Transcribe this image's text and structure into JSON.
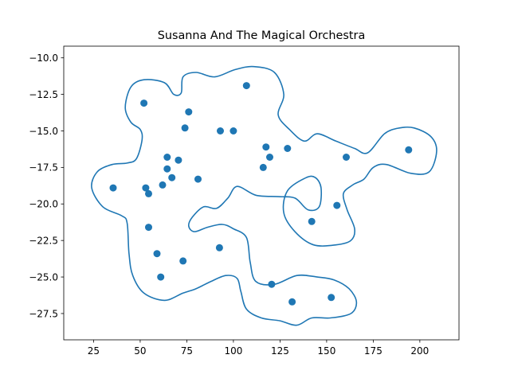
{
  "chart_data": {
    "type": "scatter",
    "title": "Susanna And The Magical Orchestra",
    "xlabel": "",
    "ylabel": "",
    "xlim": [
      9,
      221
    ],
    "ylim": [
      -29.3,
      -9.2
    ],
    "xticks": [
      25,
      50,
      75,
      100,
      125,
      150,
      175,
      200
    ],
    "xtick_labels": [
      "25",
      "50",
      "75",
      "100",
      "125",
      "150",
      "175",
      "200"
    ],
    "yticks": [
      -10.0,
      -12.5,
      -15.0,
      -17.5,
      -20.0,
      -22.5,
      -25.0,
      -27.5
    ],
    "ytick_labels": [
      "−10.0",
      "−12.5",
      "−15.0",
      "−17.5",
      "−20.0",
      "−22.5",
      "−25.0",
      "−27.5"
    ],
    "grid": false,
    "marker_color": "#1f77b4",
    "contour_color": "#1f77b4",
    "points": [
      {
        "x": 107,
        "y": -11.9
      },
      {
        "x": 52,
        "y": -13.1
      },
      {
        "x": 76,
        "y": -13.7
      },
      {
        "x": 74,
        "y": -14.8
      },
      {
        "x": 93,
        "y": -15.0
      },
      {
        "x": 100,
        "y": -15.0
      },
      {
        "x": 117.5,
        "y": -16.1
      },
      {
        "x": 129,
        "y": -16.2
      },
      {
        "x": 194,
        "y": -16.3
      },
      {
        "x": 119.5,
        "y": -16.8
      },
      {
        "x": 160.5,
        "y": -16.8
      },
      {
        "x": 64.5,
        "y": -16.8
      },
      {
        "x": 70.5,
        "y": -17.0
      },
      {
        "x": 116,
        "y": -17.5
      },
      {
        "x": 64.5,
        "y": -17.6
      },
      {
        "x": 67,
        "y": -18.2
      },
      {
        "x": 81,
        "y": -18.3
      },
      {
        "x": 62,
        "y": -18.7
      },
      {
        "x": 35.5,
        "y": -18.9
      },
      {
        "x": 53,
        "y": -18.9
      },
      {
        "x": 54.5,
        "y": -19.3
      },
      {
        "x": 155.5,
        "y": -20.1
      },
      {
        "x": 142,
        "y": -21.2
      },
      {
        "x": 54.5,
        "y": -21.6
      },
      {
        "x": 92.5,
        "y": -23.0
      },
      {
        "x": 59,
        "y": -23.4
      },
      {
        "x": 73,
        "y": -23.9
      },
      {
        "x": 61,
        "y": -25.0
      },
      {
        "x": 120.5,
        "y": -25.5
      },
      {
        "x": 152.5,
        "y": -26.4
      },
      {
        "x": 131.5,
        "y": -26.7
      }
    ],
    "contours": [
      [
        [
          52,
          -11.5
        ],
        [
          63,
          -11.7
        ],
        [
          68,
          -12.5
        ],
        [
          72,
          -12.4
        ],
        [
          73,
          -11.3
        ],
        [
          80,
          -11
        ],
        [
          90,
          -11.3
        ],
        [
          101,
          -10.8
        ],
        [
          111,
          -10.6
        ],
        [
          122,
          -11
        ],
        [
          127,
          -12.5
        ],
        [
          124,
          -13.9
        ],
        [
          130,
          -14.9
        ],
        [
          138,
          -15.7
        ],
        [
          145,
          -15.2
        ],
        [
          155,
          -15.7
        ],
        [
          165,
          -16.2
        ],
        [
          172,
          -16.5
        ],
        [
          181,
          -15.2
        ],
        [
          189,
          -14.8
        ],
        [
          197,
          -14.8
        ],
        [
          206,
          -15.4
        ],
        [
          209,
          -16.4
        ],
        [
          205,
          -17.8
        ],
        [
          195,
          -17.9
        ],
        [
          182,
          -17.3
        ],
        [
          175,
          -17.5
        ],
        [
          170,
          -18.3
        ],
        [
          164,
          -18.7
        ],
        [
          159,
          -19.3
        ],
        [
          161,
          -20.4
        ],
        [
          165,
          -21.7
        ],
        [
          163,
          -22.5
        ],
        [
          155,
          -22.8
        ],
        [
          143,
          -22.8
        ],
        [
          133,
          -21.9
        ],
        [
          127,
          -20.6
        ],
        [
          129,
          -19.1
        ],
        [
          139,
          -18.2
        ],
        [
          144,
          -18.2
        ],
        [
          147,
          -18.9
        ],
        [
          146,
          -20.2
        ],
        [
          140,
          -20.4
        ],
        [
          133,
          -19.6
        ],
        [
          124,
          -19.5
        ],
        [
          112,
          -19.4
        ],
        [
          102,
          -18.8
        ],
        [
          97,
          -19.6
        ],
        [
          91,
          -20.3
        ],
        [
          84,
          -20.2
        ],
        [
          78,
          -20.9
        ],
        [
          76,
          -21.5
        ],
        [
          79,
          -21.9
        ],
        [
          86,
          -21.6
        ],
        [
          94,
          -21.4
        ],
        [
          100,
          -21.7
        ],
        [
          107,
          -22.3
        ],
        [
          109,
          -24.0
        ],
        [
          112,
          -25.3
        ],
        [
          122,
          -25.5
        ],
        [
          134,
          -24.9
        ],
        [
          145,
          -25.0
        ],
        [
          154,
          -25.2
        ],
        [
          162,
          -25.8
        ],
        [
          166,
          -26.7
        ],
        [
          163,
          -27.5
        ],
        [
          152,
          -27.8
        ],
        [
          142,
          -27.8
        ],
        [
          134,
          -28.3
        ],
        [
          125,
          -28.0
        ],
        [
          115,
          -27.8
        ],
        [
          107,
          -27.2
        ],
        [
          104,
          -26.0
        ],
        [
          102,
          -25.1
        ],
        [
          96,
          -24.9
        ],
        [
          88,
          -25.3
        ],
        [
          80,
          -25.8
        ],
        [
          73,
          -26.1
        ],
        [
          63,
          -26.6
        ],
        [
          52,
          -26.1
        ],
        [
          46,
          -24.9
        ],
        [
          44,
          -23.4
        ],
        [
          43,
          -21.3
        ],
        [
          40,
          -20.8
        ],
        [
          30,
          -20.2
        ],
        [
          24,
          -18.9
        ],
        [
          27,
          -17.8
        ],
        [
          35,
          -17.3
        ],
        [
          43,
          -17.2
        ],
        [
          48,
          -16.9
        ],
        [
          51,
          -15.6
        ],
        [
          50,
          -14.9
        ],
        [
          45,
          -14.4
        ],
        [
          42,
          -13.4
        ],
        [
          45,
          -12.0
        ]
      ]
    ]
  }
}
